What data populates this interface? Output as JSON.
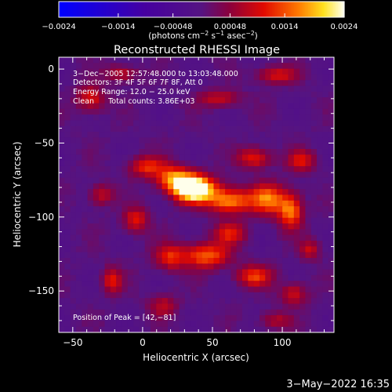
{
  "chart_data": {
    "type": "heatmap",
    "title": "Reconstructed RHESSI Image",
    "xlabel": "Heliocentric X (arcsec)",
    "ylabel": "Heliocentric Y (arcsec)",
    "xlim": [
      -60,
      137
    ],
    "ylim": [
      -178,
      8
    ],
    "x_ticks": [
      {
        "value": -50,
        "label": "−50"
      },
      {
        "value": 0,
        "label": "0"
      },
      {
        "value": 50,
        "label": "50"
      },
      {
        "value": 100,
        "label": "100"
      }
    ],
    "y_ticks": [
      {
        "value": 0,
        "label": "0"
      },
      {
        "value": -50,
        "label": "−50"
      },
      {
        "value": -100,
        "label": "−100"
      },
      {
        "value": -150,
        "label": "−150"
      }
    ],
    "colorbar": {
      "range": [
        -0.0024,
        0.0024
      ],
      "ticks": [
        {
          "value": -0.0024,
          "label": "−0.0024"
        },
        {
          "value": -0.0014,
          "label": "−0.0014"
        },
        {
          "value": -0.00048,
          "label": "−0.00048"
        },
        {
          "value": 0.00048,
          "label": "0.00048"
        },
        {
          "value": 0.0014,
          "label": "0.0014"
        },
        {
          "value": 0.0024,
          "label": "0.0024"
        }
      ],
      "unit_parts": [
        "(photons cm",
        "−2",
        " s",
        "−1",
        " asec",
        "−2",
        ")"
      ],
      "colormap": "blue-purple-red-yellow-white"
    },
    "annotations": [
      "3−Dec−2005 12:57:48.000 to 13:03:48.000",
      "Detectors: 3F 4F 5F 6F 7F 8F, Att 0",
      "Energy Range: 12.0 − 25.0 keV",
      "Clean      Total counts: 3.86E+03"
    ],
    "peak_label": "Position of Peak = [42,−81]",
    "peak": [
      42,
      -81
    ],
    "sources": [
      {
        "x": 37,
        "y": -81,
        "sx": 10,
        "sy": 6,
        "amp": 2.2
      },
      {
        "x": 23,
        "y": -74,
        "sx": 9,
        "sy": 6,
        "amp": 1.1
      },
      {
        "x": 62,
        "y": -89,
        "sx": 11,
        "sy": 6,
        "amp": 1.2
      },
      {
        "x": 90,
        "y": -88,
        "sx": 9,
        "sy": 7,
        "amp": 1.1
      },
      {
        "x": 106,
        "y": -96,
        "sx": 6,
        "sy": 8,
        "amp": 1.1
      },
      {
        "x": 3,
        "y": -66,
        "sx": 9,
        "sy": 5,
        "amp": 0.8
      },
      {
        "x": 80,
        "y": -60,
        "sx": 8,
        "sy": 5,
        "amp": 0.8
      },
      {
        "x": 114,
        "y": -62,
        "sx": 7,
        "sy": 5,
        "amp": 0.7
      },
      {
        "x": 46,
        "y": -126,
        "sx": 11,
        "sy": 6,
        "amp": 1.05
      },
      {
        "x": 20,
        "y": -127,
        "sx": 8,
        "sy": 6,
        "amp": 0.8
      },
      {
        "x": 80,
        "y": -140,
        "sx": 9,
        "sy": 5,
        "amp": 0.85
      },
      {
        "x": 63,
        "y": -111,
        "sx": 8,
        "sy": 5,
        "amp": 0.75
      },
      {
        "x": -5,
        "y": -102,
        "sx": 6,
        "sy": 6,
        "amp": 0.75
      },
      {
        "x": -30,
        "y": -85,
        "sx": 6,
        "sy": 5,
        "amp": 0.6
      },
      {
        "x": -37,
        "y": -20,
        "sx": 7,
        "sy": 6,
        "amp": 0.75
      },
      {
        "x": -15,
        "y": -3,
        "sx": 8,
        "sy": 4,
        "amp": 0.6
      },
      {
        "x": 55,
        "y": -20,
        "sx": 10,
        "sy": 4,
        "amp": 0.65
      },
      {
        "x": 96,
        "y": -4,
        "sx": 10,
        "sy": 4,
        "amp": 0.7
      },
      {
        "x": -22,
        "y": -143,
        "sx": 5,
        "sy": 6,
        "amp": 0.75
      },
      {
        "x": 108,
        "y": -152,
        "sx": 7,
        "sy": 5,
        "amp": 0.65
      },
      {
        "x": 120,
        "y": -122,
        "sx": 5,
        "sy": 5,
        "amp": 0.6
      },
      {
        "x": 15,
        "y": -160,
        "sx": 7,
        "sy": 5,
        "amp": 0.55
      },
      {
        "x": 95,
        "y": -170,
        "sx": 8,
        "sy": 4,
        "amp": 0.5
      }
    ]
  },
  "footer": {
    "date": "3−May−2022 16:35"
  },
  "colors": {
    "background": "#000000",
    "axes": "#ffffff",
    "text": "#ffffff"
  }
}
